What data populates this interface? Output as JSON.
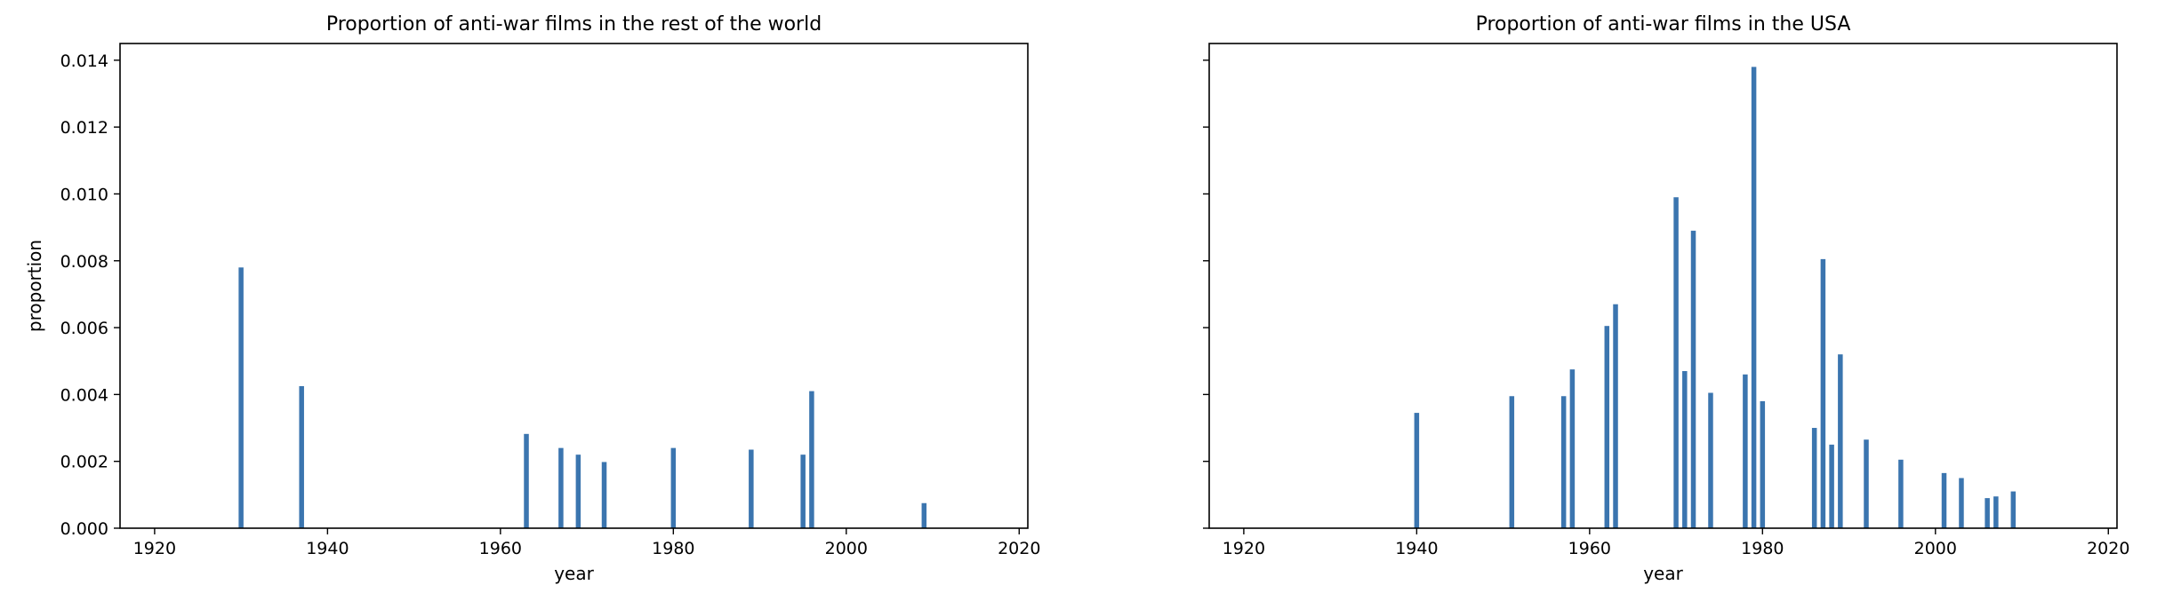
{
  "chart_data": [
    {
      "type": "bar",
      "title": "Proportion of anti-war films in the rest of the world",
      "xlabel": "year",
      "ylabel": "proportion",
      "xlim": [
        1916,
        2021
      ],
      "ylim": [
        0,
        0.0145
      ],
      "xticks": [
        1920,
        1940,
        1960,
        1980,
        2000,
        2020
      ],
      "yticks": [
        "0.000",
        "0.002",
        "0.004",
        "0.006",
        "0.008",
        "0.010",
        "0.012",
        "0.014"
      ],
      "show_ytick_labels": true,
      "color": "#3b75af",
      "points": [
        {
          "x": 1930,
          "y": 0.0078
        },
        {
          "x": 1937,
          "y": 0.00425
        },
        {
          "x": 1963,
          "y": 0.00282
        },
        {
          "x": 1967,
          "y": 0.0024
        },
        {
          "x": 1969,
          "y": 0.0022
        },
        {
          "x": 1972,
          "y": 0.00198
        },
        {
          "x": 1980,
          "y": 0.0024
        },
        {
          "x": 1989,
          "y": 0.00235
        },
        {
          "x": 1995,
          "y": 0.0022
        },
        {
          "x": 1996,
          "y": 0.0041
        },
        {
          "x": 2009,
          "y": 0.00075
        }
      ]
    },
    {
      "type": "bar",
      "title": "Proportion of anti-war films in the USA",
      "xlabel": "year",
      "ylabel": "",
      "xlim": [
        1916,
        2021
      ],
      "ylim": [
        0,
        0.0145
      ],
      "xticks": [
        1920,
        1940,
        1960,
        1980,
        2000,
        2020
      ],
      "yticks": [
        "0.000",
        "0.002",
        "0.004",
        "0.006",
        "0.008",
        "0.010",
        "0.012",
        "0.014"
      ],
      "show_ytick_labels": false,
      "color": "#3b75af",
      "points": [
        {
          "x": 1940,
          "y": 0.00345
        },
        {
          "x": 1951,
          "y": 0.00395
        },
        {
          "x": 1957,
          "y": 0.00395
        },
        {
          "x": 1958,
          "y": 0.00475
        },
        {
          "x": 1962,
          "y": 0.00605
        },
        {
          "x": 1963,
          "y": 0.0067
        },
        {
          "x": 1970,
          "y": 0.0099
        },
        {
          "x": 1971,
          "y": 0.0047
        },
        {
          "x": 1972,
          "y": 0.0089
        },
        {
          "x": 1974,
          "y": 0.00405
        },
        {
          "x": 1978,
          "y": 0.0046
        },
        {
          "x": 1979,
          "y": 0.0138
        },
        {
          "x": 1980,
          "y": 0.0038
        },
        {
          "x": 1986,
          "y": 0.003
        },
        {
          "x": 1987,
          "y": 0.00805
        },
        {
          "x": 1988,
          "y": 0.0025
        },
        {
          "x": 1989,
          "y": 0.0052
        },
        {
          "x": 1992,
          "y": 0.00265
        },
        {
          "x": 1996,
          "y": 0.00205
        },
        {
          "x": 2001,
          "y": 0.00165
        },
        {
          "x": 2003,
          "y": 0.0015
        },
        {
          "x": 2006,
          "y": 0.0009
        },
        {
          "x": 2007,
          "y": 0.00095
        },
        {
          "x": 2009,
          "y": 0.0011
        }
      ]
    }
  ]
}
